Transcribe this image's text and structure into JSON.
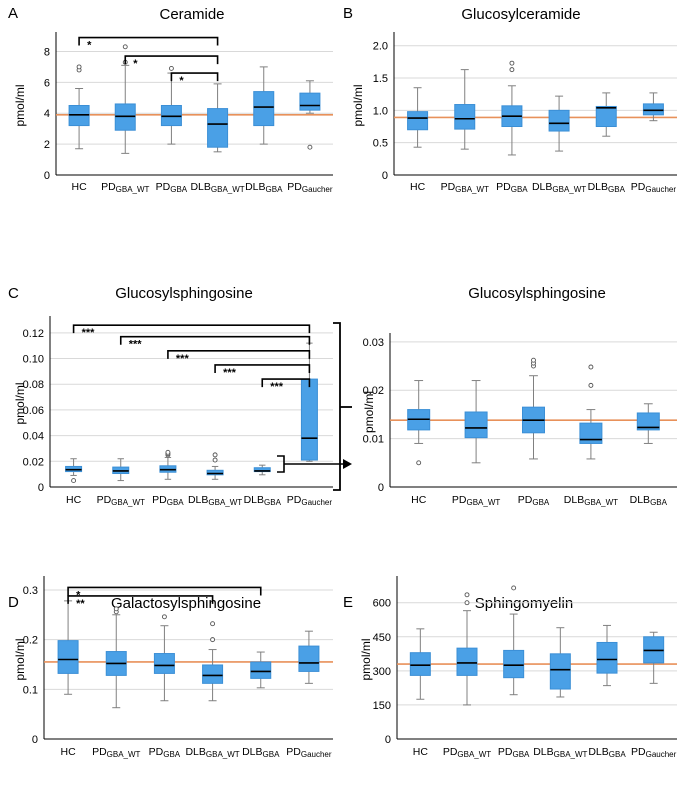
{
  "colors": {
    "box": "#4aa0e6",
    "box_edge": "#3b8fd6",
    "median": "#000000",
    "ref_line": "#e8915a",
    "grid": "#d9d9d9",
    "whisker": "#808080"
  },
  "chart_data": [
    {
      "panel": "A",
      "type": "boxplot",
      "title": "Ceramide",
      "ylabel": "pmol/ml",
      "ylim": [
        0,
        9
      ],
      "yticks": [
        "0",
        "2",
        "4",
        "6",
        "8"
      ],
      "ytick_values": [
        0,
        2,
        4,
        6,
        8
      ],
      "reference_line": 3.9,
      "categories": [
        {
          "base": "HC",
          "sub": ""
        },
        {
          "base": "PD",
          "sub": "GBA_WT"
        },
        {
          "base": "PD",
          "sub": "GBA"
        },
        {
          "base": "DLB",
          "sub": "GBA_WT"
        },
        {
          "base": "DLB",
          "sub": "GBA"
        },
        {
          "base": "PD",
          "sub": "Gaucher"
        }
      ],
      "boxes": [
        {
          "min": 1.7,
          "q1": 3.2,
          "median": 3.9,
          "q3": 4.5,
          "max": 5.6,
          "outliers": [
            6.8,
            7.0
          ]
        },
        {
          "min": 1.4,
          "q1": 2.9,
          "median": 3.8,
          "q3": 4.6,
          "max": 7.1,
          "outliers": [
            7.3,
            8.3
          ]
        },
        {
          "min": 2.0,
          "q1": 3.2,
          "median": 3.8,
          "q3": 4.5,
          "max": 6.6,
          "outliers": [
            6.9
          ]
        },
        {
          "min": 1.5,
          "q1": 1.8,
          "median": 3.3,
          "q3": 4.3,
          "max": 5.9,
          "outliers": []
        },
        {
          "min": 2.0,
          "q1": 3.2,
          "median": 4.4,
          "q3": 5.4,
          "max": 7.0,
          "outliers": []
        },
        {
          "min": 4.0,
          "q1": 4.2,
          "median": 4.5,
          "q3": 5.3,
          "max": 6.1,
          "outliers": [
            1.8
          ]
        }
      ],
      "brackets": [
        {
          "from": 0,
          "to": 3,
          "y": 8.9,
          "label": "*"
        },
        {
          "from": 1,
          "to": 3,
          "y": 7.7,
          "label": "*"
        },
        {
          "from": 2,
          "to": 3,
          "y": 6.6,
          "label": "*"
        }
      ]
    },
    {
      "panel": "B",
      "type": "boxplot",
      "title": "Glucosylceramide",
      "ylabel": "pmol/ml",
      "ylim": [
        0,
        2.15
      ],
      "yticks": [
        "0",
        "0.5",
        "1.0",
        "1.5",
        "2.0"
      ],
      "ytick_values": [
        0,
        0.5,
        1.0,
        1.5,
        2.0
      ],
      "reference_line": 0.89,
      "categories": [
        {
          "base": "HC",
          "sub": ""
        },
        {
          "base": "PD",
          "sub": "GBA_WT"
        },
        {
          "base": "PD",
          "sub": "GBA"
        },
        {
          "base": "DLB",
          "sub": "GBA_WT"
        },
        {
          "base": "DLB",
          "sub": "GBA"
        },
        {
          "base": "PD",
          "sub": "Gaucher"
        }
      ],
      "boxes": [
        {
          "min": 0.43,
          "q1": 0.7,
          "median": 0.88,
          "q3": 0.98,
          "max": 1.35,
          "outliers": []
        },
        {
          "min": 0.4,
          "q1": 0.71,
          "median": 0.87,
          "q3": 1.09,
          "max": 1.63,
          "outliers": []
        },
        {
          "min": 0.31,
          "q1": 0.75,
          "median": 0.91,
          "q3": 1.07,
          "max": 1.38,
          "outliers": [
            1.63,
            1.73
          ]
        },
        {
          "min": 0.37,
          "q1": 0.68,
          "median": 0.8,
          "q3": 1.0,
          "max": 1.22,
          "outliers": []
        },
        {
          "min": 0.6,
          "q1": 0.75,
          "median": 1.04,
          "q3": 1.06,
          "max": 1.27,
          "outliers": []
        },
        {
          "min": 0.84,
          "q1": 0.93,
          "median": 1.0,
          "q3": 1.1,
          "max": 1.27,
          "outliers": []
        }
      ],
      "brackets": []
    },
    {
      "panel": "C",
      "type": "boxplot",
      "title": "Glucosylsphingosine",
      "ylabel": "pmol/ml",
      "ylim": [
        0,
        0.13
      ],
      "yticks": [
        "0",
        "0.02",
        "0.04",
        "0.06",
        "0.08",
        "0.10",
        "0.12"
      ],
      "ytick_values": [
        0,
        0.02,
        0.04,
        0.06,
        0.08,
        0.1,
        0.12
      ],
      "reference_line": null,
      "categories": [
        {
          "base": "HC",
          "sub": ""
        },
        {
          "base": "PD",
          "sub": "GBA_WT"
        },
        {
          "base": "PD",
          "sub": "GBA"
        },
        {
          "base": "DLB",
          "sub": "GBA_WT"
        },
        {
          "base": "DLB",
          "sub": "GBA"
        },
        {
          "base": "PD",
          "sub": "Gaucher"
        }
      ],
      "boxes": [
        {
          "min": 0.009,
          "q1": 0.012,
          "median": 0.0135,
          "q3": 0.016,
          "max": 0.022,
          "outliers": [
            0.005
          ]
        },
        {
          "min": 0.005,
          "q1": 0.0105,
          "median": 0.0125,
          "q3": 0.0155,
          "max": 0.022,
          "outliers": []
        },
        {
          "min": 0.006,
          "q1": 0.0115,
          "median": 0.0135,
          "q3": 0.0165,
          "max": 0.023,
          "outliers": [
            0.025,
            0.026,
            0.027
          ]
        },
        {
          "min": 0.006,
          "q1": 0.0095,
          "median": 0.0105,
          "q3": 0.013,
          "max": 0.016,
          "outliers": [
            0.021,
            0.025
          ]
        },
        {
          "min": 0.0095,
          "q1": 0.012,
          "median": 0.0125,
          "q3": 0.015,
          "max": 0.017,
          "outliers": []
        },
        {
          "min": 0.02,
          "q1": 0.021,
          "median": 0.038,
          "q3": 0.084,
          "max": 0.112,
          "outliers": []
        }
      ],
      "brackets": [
        {
          "from": 0,
          "to": 5,
          "y": 0.126,
          "label": "***"
        },
        {
          "from": 1,
          "to": 5,
          "y": 0.117,
          "label": "***"
        },
        {
          "from": 2,
          "to": 5,
          "y": 0.106,
          "label": "***"
        },
        {
          "from": 3,
          "to": 5,
          "y": 0.095,
          "label": "***"
        },
        {
          "from": 4,
          "to": 5,
          "y": 0.084,
          "label": "***"
        }
      ]
    },
    {
      "panel": "",
      "type": "boxplot",
      "title": "Glucosylsphingosine",
      "ylabel": "pmol/ml",
      "ylim": [
        0,
        0.031
      ],
      "yticks": [
        "0",
        "0.01",
        "0.02",
        "0.03"
      ],
      "ytick_values": [
        0,
        0.01,
        0.02,
        0.03
      ],
      "reference_line": 0.0138,
      "categories": [
        {
          "base": "HC",
          "sub": ""
        },
        {
          "base": "PD",
          "sub": "GBA_WT"
        },
        {
          "base": "PD",
          "sub": "GBA"
        },
        {
          "base": "DLB",
          "sub": "GBA_WT"
        },
        {
          "base": "DLB",
          "sub": "GBA"
        }
      ],
      "boxes": [
        {
          "min": 0.009,
          "q1": 0.0118,
          "median": 0.014,
          "q3": 0.016,
          "max": 0.022,
          "outliers": [
            0.005
          ]
        },
        {
          "min": 0.005,
          "q1": 0.0102,
          "median": 0.0122,
          "q3": 0.0155,
          "max": 0.022,
          "outliers": []
        },
        {
          "min": 0.0058,
          "q1": 0.0112,
          "median": 0.0138,
          "q3": 0.0165,
          "max": 0.023,
          "outliers": [
            0.025,
            0.0256,
            0.0262
          ]
        },
        {
          "min": 0.0058,
          "q1": 0.009,
          "median": 0.0098,
          "q3": 0.0132,
          "max": 0.016,
          "outliers": [
            0.021,
            0.0248
          ]
        },
        {
          "min": 0.009,
          "q1": 0.0118,
          "median": 0.0123,
          "q3": 0.0153,
          "max": 0.0172,
          "outliers": []
        }
      ],
      "brackets": []
    },
    {
      "panel": "D",
      "type": "boxplot",
      "title": "Galactosylsphingosine",
      "ylabel": "pmol/ml",
      "ylim": [
        0,
        0.32
      ],
      "yticks": [
        "0",
        "0.1",
        "0.2",
        "0.3"
      ],
      "ytick_values": [
        0,
        0.1,
        0.2,
        0.3
      ],
      "reference_line": 0.155,
      "categories": [
        {
          "base": "HC",
          "sub": ""
        },
        {
          "base": "PD",
          "sub": "GBA_WT"
        },
        {
          "base": "PD",
          "sub": "GBA"
        },
        {
          "base": "DLB",
          "sub": "GBA_WT"
        },
        {
          "base": "DLB",
          "sub": "GBA"
        },
        {
          "base": "PD",
          "sub": "Gaucher"
        }
      ],
      "boxes": [
        {
          "min": 0.09,
          "q1": 0.132,
          "median": 0.16,
          "q3": 0.198,
          "max": 0.278,
          "outliers": []
        },
        {
          "min": 0.063,
          "q1": 0.128,
          "median": 0.152,
          "q3": 0.176,
          "max": 0.25,
          "outliers": [
            0.256,
            0.262
          ]
        },
        {
          "min": 0.077,
          "q1": 0.132,
          "median": 0.148,
          "q3": 0.172,
          "max": 0.228,
          "outliers": [
            0.246
          ]
        },
        {
          "min": 0.077,
          "q1": 0.112,
          "median": 0.128,
          "q3": 0.149,
          "max": 0.18,
          "outliers": [
            0.2,
            0.232
          ]
        },
        {
          "min": 0.103,
          "q1": 0.122,
          "median": 0.136,
          "q3": 0.155,
          "max": 0.175,
          "outliers": []
        },
        {
          "min": 0.112,
          "q1": 0.136,
          "median": 0.153,
          "q3": 0.187,
          "max": 0.217,
          "outliers": []
        }
      ],
      "brackets": [
        {
          "from": 0,
          "to": 4,
          "y": 0.305,
          "label": "*"
        },
        {
          "from": 0,
          "to": 3,
          "y": 0.288,
          "label": "**"
        }
      ]
    },
    {
      "panel": "E",
      "type": "boxplot",
      "title": "Sphingomyelin",
      "ylabel": "pmol/ml",
      "ylim": [
        0,
        700
      ],
      "yticks": [
        "0",
        "150",
        "300",
        "450",
        "600"
      ],
      "ytick_values": [
        0,
        150,
        300,
        450,
        600
      ],
      "reference_line": 330,
      "categories": [
        {
          "base": "HC",
          "sub": ""
        },
        {
          "base": "PD",
          "sub": "GBA_WT"
        },
        {
          "base": "PD",
          "sub": "GBA"
        },
        {
          "base": "DLB",
          "sub": "GBA_WT"
        },
        {
          "base": "DLB",
          "sub": "GBA"
        },
        {
          "base": "PD",
          "sub": "Gaucher"
        }
      ],
      "boxes": [
        {
          "min": 175,
          "q1": 280,
          "median": 325,
          "q3": 380,
          "max": 485,
          "outliers": []
        },
        {
          "min": 150,
          "q1": 280,
          "median": 335,
          "q3": 400,
          "max": 565,
          "outliers": [
            600,
            635
          ]
        },
        {
          "min": 195,
          "q1": 270,
          "median": 325,
          "q3": 390,
          "max": 550,
          "outliers": [
            665
          ]
        },
        {
          "min": 185,
          "q1": 220,
          "median": 305,
          "q3": 375,
          "max": 490,
          "outliers": []
        },
        {
          "min": 235,
          "q1": 290,
          "median": 350,
          "q3": 425,
          "max": 500,
          "outliers": []
        },
        {
          "min": 245,
          "q1": 335,
          "median": 390,
          "q3": 450,
          "max": 470,
          "outliers": []
        }
      ],
      "brackets": []
    }
  ]
}
